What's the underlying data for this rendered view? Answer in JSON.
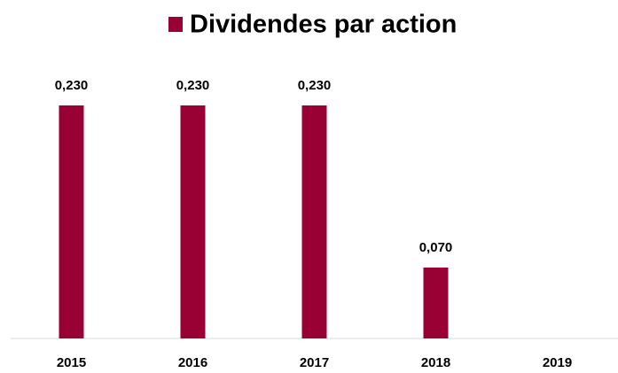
{
  "chart_data": {
    "type": "bar",
    "categories": [
      "2015",
      "2016",
      "2017",
      "2018",
      "2019"
    ],
    "series": [
      {
        "name": "Dividendes par action",
        "color": "#990033",
        "values": [
          0.23,
          0.23,
          0.23,
          0.07,
          null
        ],
        "value_labels": [
          "0,230",
          "0,230",
          "0,230",
          "0,070",
          null
        ]
      }
    ],
    "legend": "top"
  }
}
